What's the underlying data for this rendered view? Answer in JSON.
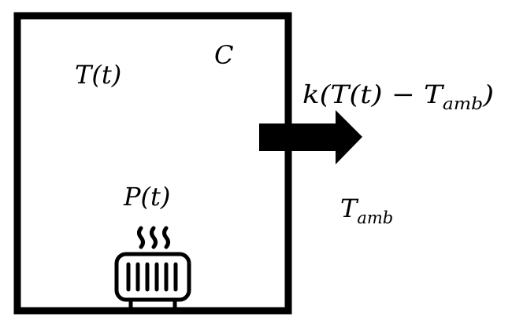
{
  "labels": {
    "temperature": "T(t)",
    "capacity": "C",
    "power": "P(t)",
    "flux_prefix": "k(T(t) − T",
    "flux_subscript": "amb",
    "flux_suffix": ")",
    "ambient_base": "T",
    "ambient_subscript": "amb"
  },
  "colors": {
    "stroke": "#000000",
    "background": "#ffffff"
  },
  "icons": {
    "heater": "radiator-heater-icon",
    "heat_flow": "right-arrow-icon"
  }
}
